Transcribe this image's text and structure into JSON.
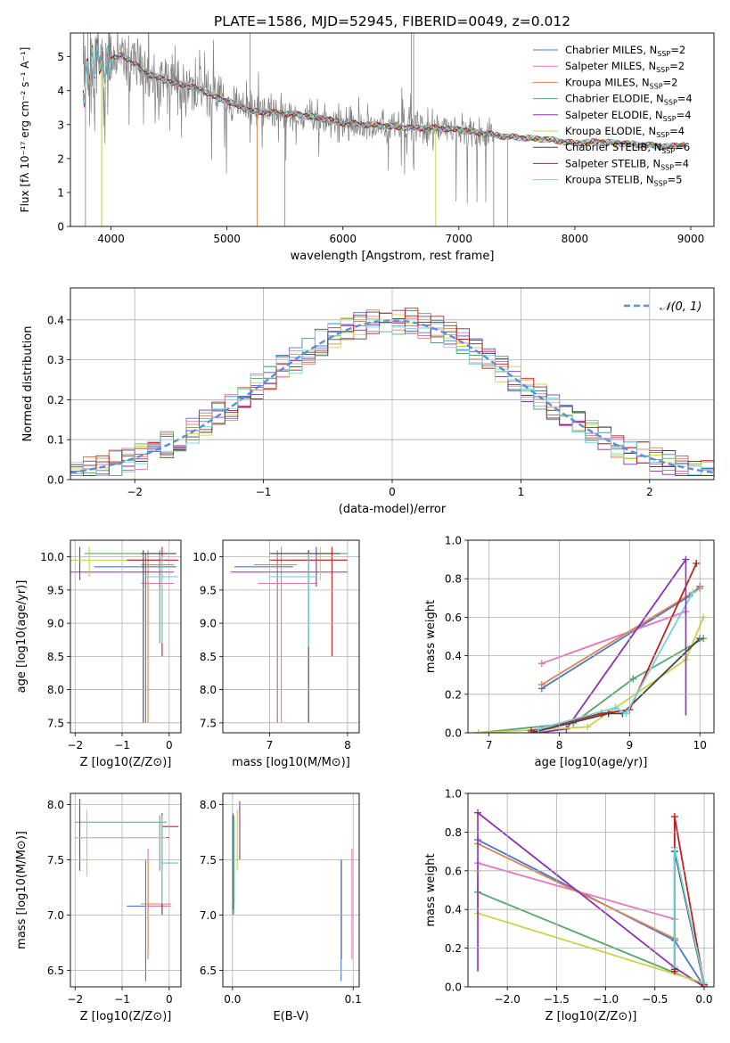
{
  "figure": {
    "title": "PLATE=1586, MJD=52945, FIBERID=0049, z=0.012"
  },
  "colors": {
    "Chabrier MILES": "#4878cf",
    "Salpeter MILES": "#e377c2",
    "Kroupa MILES": "#dd8452",
    "Chabrier ELODIE": "#55a868",
    "Salpeter ELODIE": "#8c2fb0",
    "Kroupa ELODIE": "#c8d44a",
    "Chabrier STELIB": "#444444",
    "Salpeter STELIB": "#c21f1f",
    "Kroupa STELIB": "#74d2e0",
    "data": "#808080",
    "normal": "#5a8fd6"
  },
  "chart_data": [
    {
      "id": "spectrum",
      "type": "line",
      "title": "PLATE=1586, MJD=52945, FIBERID=0049, z=0.012",
      "xlabel": "wavelength [Angstrom, rest frame]",
      "ylabel": "Flux [fλ 10⁻¹⁷ erg cm⁻² s⁻¹ A⁻¹]",
      "xlim": [
        3650,
        9200
      ],
      "ylim": [
        0,
        5.7
      ],
      "xticks": [
        4000,
        5000,
        6000,
        7000,
        8000,
        9000
      ],
      "yticks": [
        0,
        1,
        2,
        3,
        4,
        5
      ],
      "grid": false,
      "legend_position": "top-right",
      "legend": [
        {
          "label": "Chabrier MILES, N",
          "sub": "SSP",
          "tail": "=2"
        },
        {
          "label": "Salpeter MILES, N",
          "sub": "SSP",
          "tail": "=2"
        },
        {
          "label": "Kroupa MILES, N",
          "sub": "SSP",
          "tail": "=2"
        },
        {
          "label": "Chabrier ELODIE, N",
          "sub": "SSP",
          "tail": "=4"
        },
        {
          "label": "Salpeter ELODIE, N",
          "sub": "SSP",
          "tail": "=4"
        },
        {
          "label": "Kroupa ELODIE, N",
          "sub": "SSP",
          "tail": "=4"
        },
        {
          "label": "Chabrier STELIB, N",
          "sub": "SSP",
          "tail": "=6"
        },
        {
          "label": "Salpeter STELIB, N",
          "sub": "SSP",
          "tail": "=4"
        },
        {
          "label": "Kroupa STELIB, N",
          "sub": "SSP",
          "tail": "=5"
        }
      ],
      "continuum": [
        [
          3760,
          3.9
        ],
        [
          3800,
          4.6
        ],
        [
          3850,
          4.9
        ],
        [
          3900,
          5.0
        ],
        [
          3950,
          4.7
        ],
        [
          4000,
          4.9
        ],
        [
          4100,
          5.05
        ],
        [
          4200,
          4.8
        ],
        [
          4300,
          4.5
        ],
        [
          4400,
          4.4
        ],
        [
          4500,
          4.25
        ],
        [
          4600,
          4.2
        ],
        [
          4700,
          4.1
        ],
        [
          4800,
          4.0
        ],
        [
          4900,
          3.8
        ],
        [
          5000,
          3.7
        ],
        [
          5200,
          3.4
        ],
        [
          5400,
          3.35
        ],
        [
          5600,
          3.3
        ],
        [
          5800,
          3.2
        ],
        [
          6000,
          3.05
        ],
        [
          6200,
          3.0
        ],
        [
          6400,
          2.95
        ],
        [
          6600,
          2.9
        ],
        [
          6800,
          2.9
        ],
        [
          7000,
          2.85
        ],
        [
          7200,
          2.75
        ],
        [
          7400,
          2.65
        ],
        [
          7600,
          2.6
        ],
        [
          7800,
          2.55
        ],
        [
          8000,
          2.45
        ],
        [
          8200,
          2.5
        ],
        [
          8400,
          2.45
        ],
        [
          8600,
          2.4
        ],
        [
          8800,
          2.35
        ],
        [
          8950,
          2.4
        ]
      ]
    },
    {
      "id": "residual-histogram",
      "type": "histogram",
      "xlabel": "(data-model)/error",
      "ylabel": "Normed distribution",
      "xlim": [
        -2.5,
        2.5
      ],
      "ylim": [
        0,
        0.48
      ],
      "xticks": [
        -2,
        -1,
        0,
        1,
        2
      ],
      "yticks": [
        0.0,
        0.1,
        0.2,
        0.3,
        0.4
      ],
      "grid": true,
      "legend_position": "top-right",
      "legend": [
        {
          "label": "𝒩(0, 1)"
        }
      ],
      "bin_width": 0.1
    },
    {
      "id": "age-vs-Z",
      "type": "errorbar",
      "xlabel": "Z [log10(Z/Z⊙)]",
      "ylabel": "age [log10(age/yr)]",
      "xlim": [
        -2.1,
        0.25
      ],
      "ylim": [
        7.35,
        10.25
      ],
      "xticks": [
        -2,
        -1,
        0
      ],
      "yticks": [
        7.5,
        8.0,
        8.5,
        9.0,
        9.5,
        10.0
      ],
      "grid": true
    },
    {
      "id": "age-vs-mass",
      "type": "errorbar",
      "xlabel": "mass [log10(M/M⊙)]",
      "ylabel": "",
      "xlim": [
        6.4,
        8.15
      ],
      "ylim": [
        7.35,
        10.25
      ],
      "xticks": [
        7,
        8
      ],
      "yticks": [
        7.5,
        8.0,
        8.5,
        9.0,
        9.5,
        10.0
      ],
      "grid": true
    },
    {
      "id": "weight-vs-age",
      "type": "line",
      "xlabel": "age [log10(age/yr)]",
      "ylabel": "mass weight",
      "xlim": [
        6.7,
        10.2
      ],
      "ylim": [
        0,
        1.0
      ],
      "xticks": [
        7,
        8,
        9,
        10
      ],
      "yticks": [
        0.0,
        0.2,
        0.4,
        0.6,
        0.8,
        1.0
      ],
      "grid": true
    },
    {
      "id": "mass-vs-Z",
      "type": "errorbar",
      "xlabel": "Z [log10(Z/Z⊙)]",
      "ylabel": "mass [log10(M/M⊙)]",
      "xlim": [
        -2.1,
        0.25
      ],
      "ylim": [
        6.35,
        8.1
      ],
      "xticks": [
        -2,
        -1,
        0
      ],
      "yticks": [
        6.5,
        7.0,
        7.5,
        8.0
      ],
      "grid": true
    },
    {
      "id": "mass-vs-ebv",
      "type": "errorbar",
      "xlabel": "E(B-V)",
      "ylabel": "",
      "xlim": [
        -0.008,
        0.105
      ],
      "ylim": [
        6.35,
        8.1
      ],
      "xticks": [
        0.0,
        0.1
      ],
      "yticks": [
        6.5,
        7.0,
        7.5,
        8.0
      ],
      "grid": true
    },
    {
      "id": "weight-vs-Z",
      "type": "line",
      "xlabel": "Z [log10(Z/Z⊙)]",
      "ylabel": "mass weight",
      "xlim": [
        -2.4,
        0.1
      ],
      "ylim": [
        0,
        1.0
      ],
      "xticks": [
        -2.0,
        -1.5,
        -1.0,
        -0.5,
        0.0
      ],
      "yticks": [
        0.0,
        0.2,
        0.4,
        0.6,
        0.8,
        1.0
      ],
      "grid": true
    }
  ],
  "models": [
    {
      "name": "Chabrier MILES",
      "ages": [
        7.75,
        9.85,
        10.0
      ],
      "Z": [
        -0.3,
        -0.3,
        0.0
      ],
      "weights": [
        0.23,
        0.71,
        0.76
      ],
      "pw": [
        [
          -2.3,
          0.76
        ],
        [
          -0.3,
          0.24
        ],
        [
          0.0,
          0.0
        ]
      ],
      "zage": [
        -0.3,
        9.85
      ],
      "mz": [
        -0.45,
        7.08
      ],
      "ebv": 0.09
    },
    {
      "name": "Salpeter MILES",
      "ages": [
        7.75,
        9.8
      ],
      "Z": [
        -2.3,
        -0.3
      ],
      "weights": [
        0.36,
        0.63
      ],
      "pw": [
        [
          -2.3,
          0.64
        ],
        [
          -0.3,
          0.35
        ]
      ],
      "zage": [
        -0.6,
        9.6
      ],
      "mz": [
        -0.6,
        7.08
      ],
      "ebv": 0.1
    },
    {
      "name": "Kroupa MILES",
      "ages": [
        7.75,
        10.0
      ],
      "Z": [
        -2.3,
        -0.3
      ],
      "weights": [
        0.25,
        0.75
      ],
      "pw": [
        [
          -2.3,
          0.74
        ],
        [
          -0.3,
          0.25
        ]
      ],
      "zage": [
        -0.45,
        9.88
      ],
      "mz": [
        -0.45,
        7.1
      ],
      "ebv": 0.09
    },
    {
      "name": "Chabrier ELODIE",
      "ages": [
        6.85,
        8.2,
        9.05,
        10.05
      ],
      "Z": [
        -2.3,
        0.0
      ],
      "weights": [
        0.0,
        0.05,
        0.28,
        0.49
      ],
      "pw": [
        [
          -2.3,
          0.49
        ],
        [
          0.0,
          0.01
        ]
      ],
      "zage": [
        -0.3,
        10.05
      ],
      "mz": [
        -0.8,
        7.84
      ],
      "ebv": 0.0
    },
    {
      "name": "Salpeter ELODIE",
      "ages": [
        7.7,
        8.1,
        9.8
      ],
      "Z": [
        -2.3,
        -0.3
      ],
      "weights": [
        0.0,
        0.02,
        0.9
      ],
      "pw": [
        [
          -2.3,
          0.9
        ],
        [
          -0.3,
          0.1
        ],
        [
          0.0,
          0.0
        ]
      ],
      "zage": [
        -1.6,
        9.77
      ],
      "mz": [
        -1.9,
        7.7
      ],
      "ebv": 0.0
    },
    {
      "name": "Kroupa ELODIE",
      "ages": [
        6.85,
        8.4,
        9.8,
        10.05
      ],
      "Z": [
        -2.3,
        0.0
      ],
      "weights": [
        0.0,
        0.03,
        0.38,
        0.6
      ],
      "pw": [
        [
          -2.3,
          0.6
        ],
        [
          -2.3,
          0.38
        ],
        [
          0.0,
          0.02
        ]
      ],
      "zage": [
        -1.8,
        9.95
      ],
      "mz": [
        -1.8,
        7.7
      ],
      "ebv": 0.002
    },
    {
      "name": "Chabrier STELIB",
      "ages": [
        7.6,
        8.7,
        8.9,
        10.0
      ],
      "Z": [
        -0.3,
        -0.3,
        0.0
      ],
      "weights": [
        0.0,
        0.1,
        0.1,
        0.49
      ],
      "pw": [
        [
          -0.3,
          0.09
        ],
        [
          -0.3,
          0.7
        ],
        [
          0.0,
          0.01
        ]
      ],
      "zage": [
        -0.3,
        10.05
      ],
      "mz": [
        -0.3,
        7.47
      ],
      "ebv": 0.0
    },
    {
      "name": "Salpeter STELIB",
      "ages": [
        7.6,
        8.6,
        9.0,
        9.95
      ],
      "Z": [
        -0.3,
        -0.3,
        0.0
      ],
      "weights": [
        0.01,
        0.1,
        0.12,
        0.88
      ],
      "pw": [
        [
          -0.3,
          0.08
        ],
        [
          -0.3,
          0.88
        ],
        [
          0.0,
          0.01
        ]
      ],
      "zage": [
        -0.15,
        9.95
      ],
      "mz": [
        -0.15,
        7.8
      ],
      "ebv": 0.0
    },
    {
      "name": "Kroupa STELIB",
      "ages": [
        7.7,
        8.8,
        8.95,
        9.9
      ],
      "Z": [
        -0.3,
        -0.3,
        0.0
      ],
      "weights": [
        0.02,
        0.13,
        0.1,
        0.73
      ],
      "pw": [
        [
          -0.3,
          0.1
        ],
        [
          -0.3,
          0.72
        ],
        [
          0.0,
          0.02
        ]
      ],
      "zage": [
        -0.2,
        9.7
      ],
      "mz": [
        -0.2,
        7.47
      ],
      "ebv": 0.0
    }
  ]
}
